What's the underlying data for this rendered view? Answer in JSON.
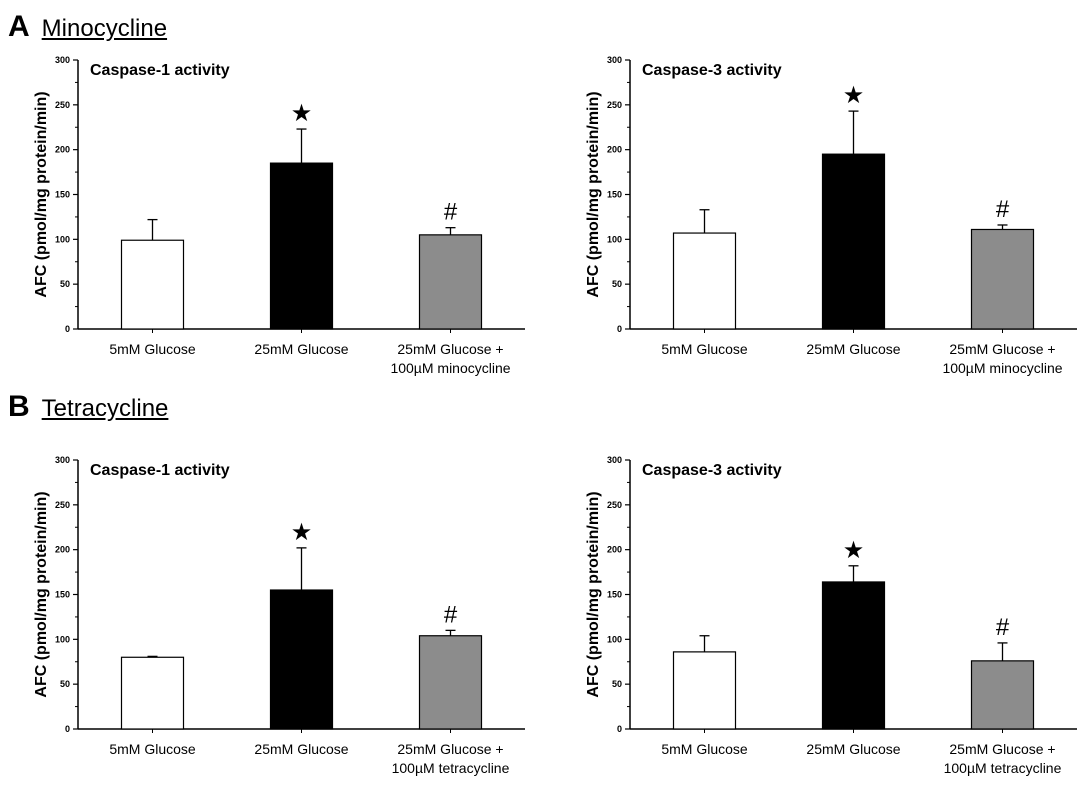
{
  "sections": [
    {
      "letter": "A",
      "title": "Minocycline"
    },
    {
      "letter": "B",
      "title": "Tetracycline"
    }
  ],
  "colors": {
    "bar_5mM": "#ffffff",
    "bar_25mM": "#000000",
    "bar_treated": "#8c8c8c"
  },
  "chart_data": [
    {
      "type": "bar",
      "title": "Caspase-1 activity",
      "ylabel": "AFC (pmol/mg protein/min)",
      "ylim": [
        0,
        300
      ],
      "yticks": [
        0,
        50,
        100,
        150,
        200,
        250,
        300
      ],
      "categories": [
        "5mM Glucose",
        "25mM Glucose",
        "25mM Glucose + 100µM minocycline"
      ],
      "category_lines": [
        [
          "5mM Glucose"
        ],
        [
          "25mM Glucose"
        ],
        [
          "25mM Glucose +",
          "100µM minocycline"
        ]
      ],
      "values": [
        99,
        185,
        105
      ],
      "errors": [
        23,
        38,
        8
      ],
      "annotations": [
        "",
        "★",
        "#"
      ]
    },
    {
      "type": "bar",
      "title": "Caspase-3 activity",
      "ylabel": "AFC (pmol/mg protein/min)",
      "ylim": [
        0,
        300
      ],
      "yticks": [
        0,
        50,
        100,
        150,
        200,
        250,
        300
      ],
      "categories": [
        "5mM Glucose",
        "25mM Glucose",
        "25mM Glucose + 100µM minocycline"
      ],
      "category_lines": [
        [
          "5mM Glucose"
        ],
        [
          "25mM Glucose"
        ],
        [
          "25mM Glucose +",
          "100µM minocycline"
        ]
      ],
      "values": [
        107,
        195,
        111
      ],
      "errors": [
        26,
        48,
        5
      ],
      "annotations": [
        "",
        "★",
        "#"
      ]
    },
    {
      "type": "bar",
      "title": "Caspase-1 activity",
      "ylabel": "AFC (pmol/mg protein/min)",
      "ylim": [
        0,
        300
      ],
      "yticks": [
        0,
        50,
        100,
        150,
        200,
        250,
        300
      ],
      "categories": [
        "5mM Glucose",
        "25mM Glucose",
        "25mM Glucose + 100µM tetracycline"
      ],
      "category_lines": [
        [
          "5mM Glucose"
        ],
        [
          "25mM Glucose"
        ],
        [
          "25mM Glucose +",
          "100µM tetracycline"
        ]
      ],
      "values": [
        80,
        155,
        104
      ],
      "errors": [
        1,
        47,
        6
      ],
      "annotations": [
        "",
        "★",
        "#"
      ]
    },
    {
      "type": "bar",
      "title": "Caspase-3 activity",
      "ylabel": "AFC (pmol/mg protein/min)",
      "ylim": [
        0,
        300
      ],
      "yticks": [
        0,
        50,
        100,
        150,
        200,
        250,
        300
      ],
      "categories": [
        "5mM Glucose",
        "25mM Glucose",
        "25mM Glucose + 100µM tetracycline"
      ],
      "category_lines": [
        [
          "5mM Glucose"
        ],
        [
          "25mM Glucose"
        ],
        [
          "25mM Glucose +",
          "100µM tetracycline"
        ]
      ],
      "values": [
        86,
        164,
        76
      ],
      "errors": [
        18,
        18,
        20
      ],
      "annotations": [
        "",
        "★",
        "#"
      ]
    }
  ]
}
